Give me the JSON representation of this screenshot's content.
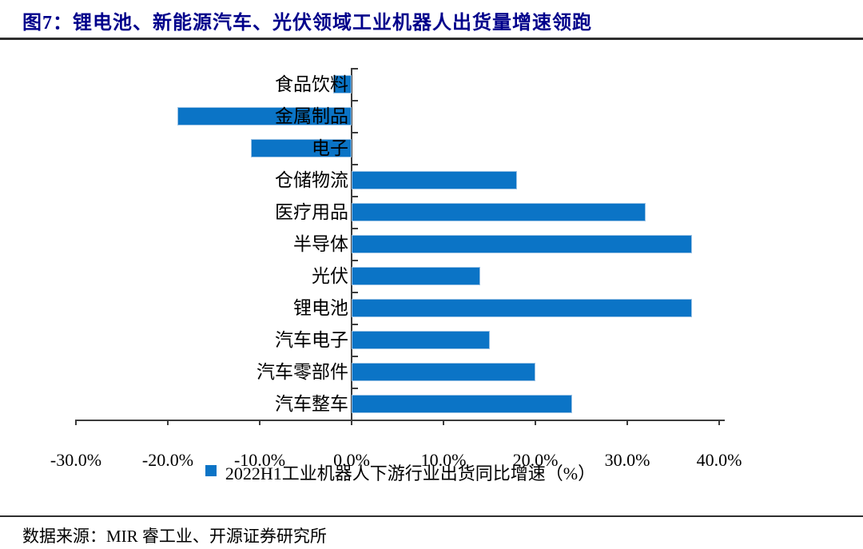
{
  "figure": {
    "title": "图7：锂电池、新能源汽车、光伏领域工业机器人出货量增速领跑",
    "source": "数据来源：MIR 睿工业、开源证券研究所"
  },
  "chart_data": {
    "type": "bar",
    "orientation": "horizontal",
    "title": "",
    "categories": [
      "食品饮料",
      "金属制品",
      "电子",
      "仓储物流",
      "医疗用品",
      "半导体",
      "光伏",
      "锂电池",
      "汽车电子",
      "汽车零部件",
      "汽车整车"
    ],
    "values": [
      -2,
      -19,
      -11,
      18,
      32,
      37,
      14,
      37,
      15,
      20,
      24
    ],
    "unit": "%",
    "legend": "2022H1工业机器人下游行业出货同比增速（%）",
    "legend_position": "bottom",
    "xlim": [
      -30,
      40.6
    ],
    "x_ticks": [
      -30,
      -20,
      -10,
      0,
      10,
      20,
      30,
      40
    ],
    "x_tick_labels": [
      "-30.0%",
      "-20.0%",
      "-10.0%",
      "0.0%",
      "10.0%",
      "20.0%",
      "30.0%",
      "40.0%"
    ],
    "grid": false,
    "bar_color": "#0b74c6",
    "bar_border_color": "#9cc3e5"
  },
  "colors": {
    "title_text": "#00008B",
    "axis": "#3c3c3c",
    "rule": "#2e2e2e"
  }
}
